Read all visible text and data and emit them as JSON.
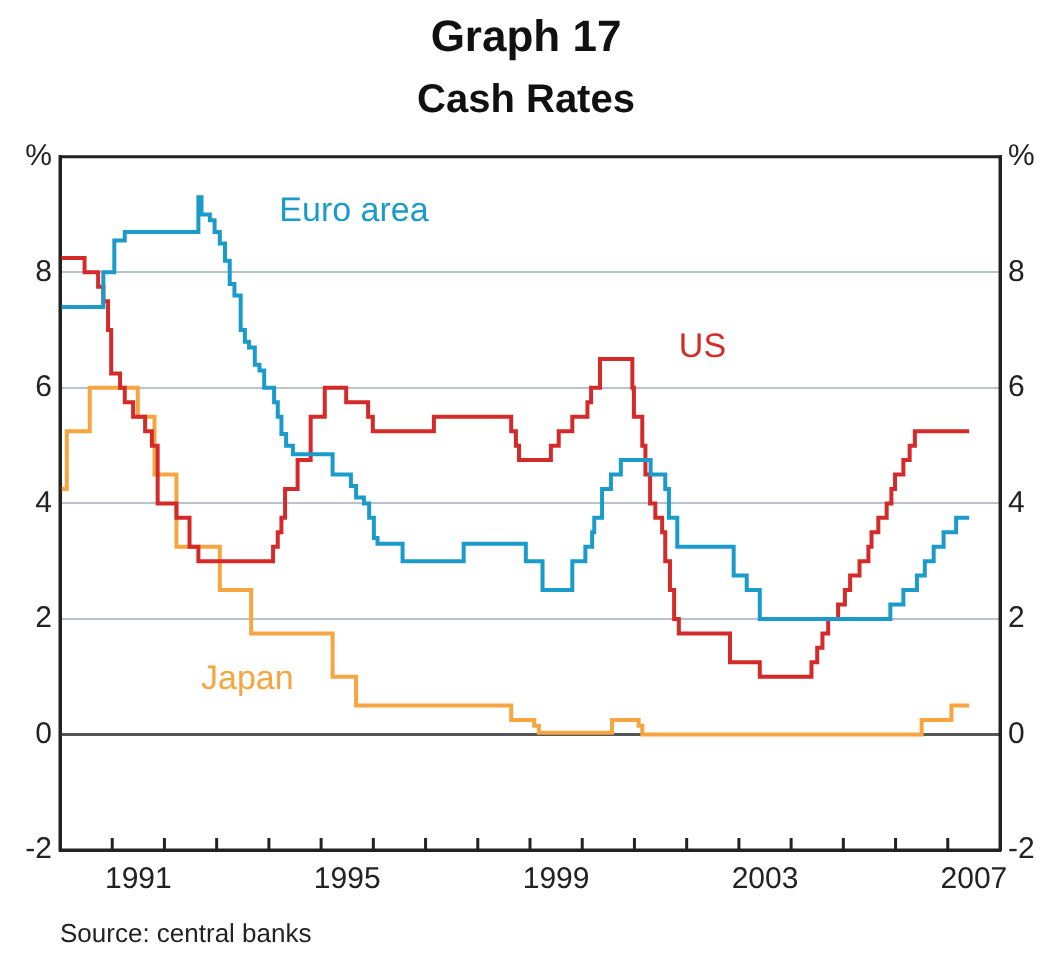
{
  "chart_data": {
    "type": "step",
    "title": "Graph 17",
    "subtitle": "Cash Rates",
    "annotations": [
      "Source: central banks"
    ],
    "xlim": [
      1990,
      2008
    ],
    "xticks": [
      {
        "value": 1991,
        "label": null
      },
      {
        "value": 1991.5,
        "label": "1991"
      },
      {
        "value": 1992,
        "label": null
      },
      {
        "value": 1993,
        "label": null
      },
      {
        "value": 1994,
        "label": null
      },
      {
        "value": 1995,
        "label": null
      },
      {
        "value": 1995.5,
        "label": "1995"
      },
      {
        "value": 1996,
        "label": null
      },
      {
        "value": 1997,
        "label": null
      },
      {
        "value": 1998,
        "label": null
      },
      {
        "value": 1999,
        "label": null
      },
      {
        "value": 1999.5,
        "label": "1999"
      },
      {
        "value": 2000,
        "label": null
      },
      {
        "value": 2001,
        "label": null
      },
      {
        "value": 2002,
        "label": null
      },
      {
        "value": 2003,
        "label": null
      },
      {
        "value": 2003.5,
        "label": "2003"
      },
      {
        "value": 2004,
        "label": null
      },
      {
        "value": 2005,
        "label": null
      },
      {
        "value": 2006,
        "label": null
      },
      {
        "value": 2007,
        "label": null
      },
      {
        "value": 2007.5,
        "label": "2007"
      }
    ],
    "ylim": [
      -2,
      10
    ],
    "yticks": [
      -2,
      0,
      2,
      4,
      6,
      8,
      {
        "value": 10,
        "label": "%"
      }
    ],
    "y2lim": [
      -2,
      10
    ],
    "y2ticks": [
      -2,
      0,
      2,
      4,
      6,
      8,
      {
        "value": 10,
        "label": "%"
      }
    ],
    "grid": "y",
    "legend": false,
    "ref_lines": [
      {
        "axis": "y",
        "value": 0,
        "color": "#555555"
      }
    ],
    "series": [
      {
        "name": "Euro area",
        "color": "#1a9bc9",
        "x": [
          1990,
          1990.83,
          1991.04,
          1991.24,
          1992.65,
          1992.71,
          1992.87,
          1992.96,
          1993.06,
          1993.16,
          1993.25,
          1993.34,
          1993.46,
          1993.54,
          1993.62,
          1993.73,
          1993.82,
          1993.91,
          1994.1,
          1994.17,
          1994.24,
          1994.33,
          1994.46,
          1995.22,
          1995.57,
          1995.67,
          1995.82,
          1995.92,
          1996.01,
          1996.08,
          1996.56,
          1997.73,
          1998.92,
          1999.24,
          1999.81,
          2000.06,
          2000.19,
          2000.23,
          2000.38,
          2000.55,
          2000.74,
          2001.31,
          2001.59,
          2001.66,
          2001.82,
          2002.9,
          2003.15,
          2003.4,
          2005.9,
          2006.15,
          2006.41,
          2006.56,
          2006.73,
          2006.92,
          2007.16,
          2007.41
        ],
        "values": [
          7.4,
          8,
          8.55,
          8.7,
          9.3,
          9,
          8.9,
          8.7,
          8.5,
          8.2,
          7.8,
          7.6,
          7,
          6.8,
          6.7,
          6.4,
          6.3,
          6,
          5.75,
          5.5,
          5.2,
          5,
          4.85,
          4.5,
          4.3,
          4.1,
          4,
          3.75,
          3.4,
          3.3,
          3,
          3.3,
          3,
          2.5,
          3,
          3.25,
          3.5,
          3.75,
          4.25,
          4.5,
          4.75,
          4.5,
          4.25,
          3.75,
          3.25,
          2.75,
          2.5,
          2,
          2.25,
          2.5,
          2.75,
          3,
          3.25,
          3.5,
          3.75,
          3.75
        ]
      },
      {
        "name": "US",
        "color": "#d42a2a",
        "x": [
          1990,
          1990.47,
          1990.73,
          1990.83,
          1990.92,
          1990.98,
          1991.15,
          1991.24,
          1991.4,
          1991.63,
          1991.76,
          1991.87,
          1992.23,
          1992.48,
          1992.65,
          1994.08,
          1994.17,
          1994.24,
          1994.31,
          1994.55,
          1994.8,
          1995.07,
          1995.48,
          1995.9,
          1995.99,
          1997.16,
          1998.64,
          1998.73,
          1998.79,
          1999.4,
          1999.55,
          1999.81,
          2000.1,
          2000.17,
          2000.34,
          2000.96,
          2000.99,
          2001.15,
          2001.21,
          2001.3,
          2001.4,
          2001.53,
          2001.59,
          2001.68,
          2001.76,
          2001.85,
          2002.83,
          2003.4,
          2004.39,
          2004.5,
          2004.6,
          2004.71,
          2004.9,
          2005.03,
          2005.13,
          2005.31,
          2005.48,
          2005.54,
          2005.67,
          2005.83,
          2005.92,
          2005.99,
          2006.15,
          2006.27,
          2006.37,
          2007.41
        ],
        "values": [
          8.25,
          8,
          7.75,
          7.5,
          7,
          6.25,
          6,
          5.75,
          5.5,
          5.25,
          5,
          4,
          3.75,
          3.25,
          3,
          3.25,
          3.5,
          3.75,
          4.25,
          4.75,
          5.5,
          6,
          5.75,
          5.5,
          5.25,
          5.5,
          5.25,
          5,
          4.75,
          5,
          5.25,
          5.5,
          5.75,
          6,
          6.5,
          6,
          5.5,
          5,
          4.5,
          4,
          3.75,
          3.5,
          3,
          2.5,
          2,
          1.75,
          1.25,
          1,
          1.25,
          1.5,
          1.75,
          2,
          2.25,
          2.5,
          2.75,
          3,
          3.25,
          3.5,
          3.75,
          4,
          4.25,
          4.5,
          4.75,
          5,
          5.25,
          5.25
        ]
      },
      {
        "name": "Japan",
        "color": "#f7a540",
        "x": [
          1990.03,
          1990.13,
          1990.57,
          1991.49,
          1991.81,
          1992.23,
          1993.06,
          1993.66,
          1995.22,
          1995.67,
          1998.64,
          1999.08,
          1999.17,
          2000.57,
          2001.08,
          2001.15,
          2006.5,
          2007.07,
          2007.41
        ],
        "values": [
          4.25,
          5.25,
          6,
          5.5,
          4.5,
          3.25,
          2.5,
          1.75,
          1,
          0.5,
          0.25,
          0.15,
          0.03,
          0.25,
          0.15,
          0,
          0.25,
          0.5,
          0.5
        ]
      }
    ]
  }
}
